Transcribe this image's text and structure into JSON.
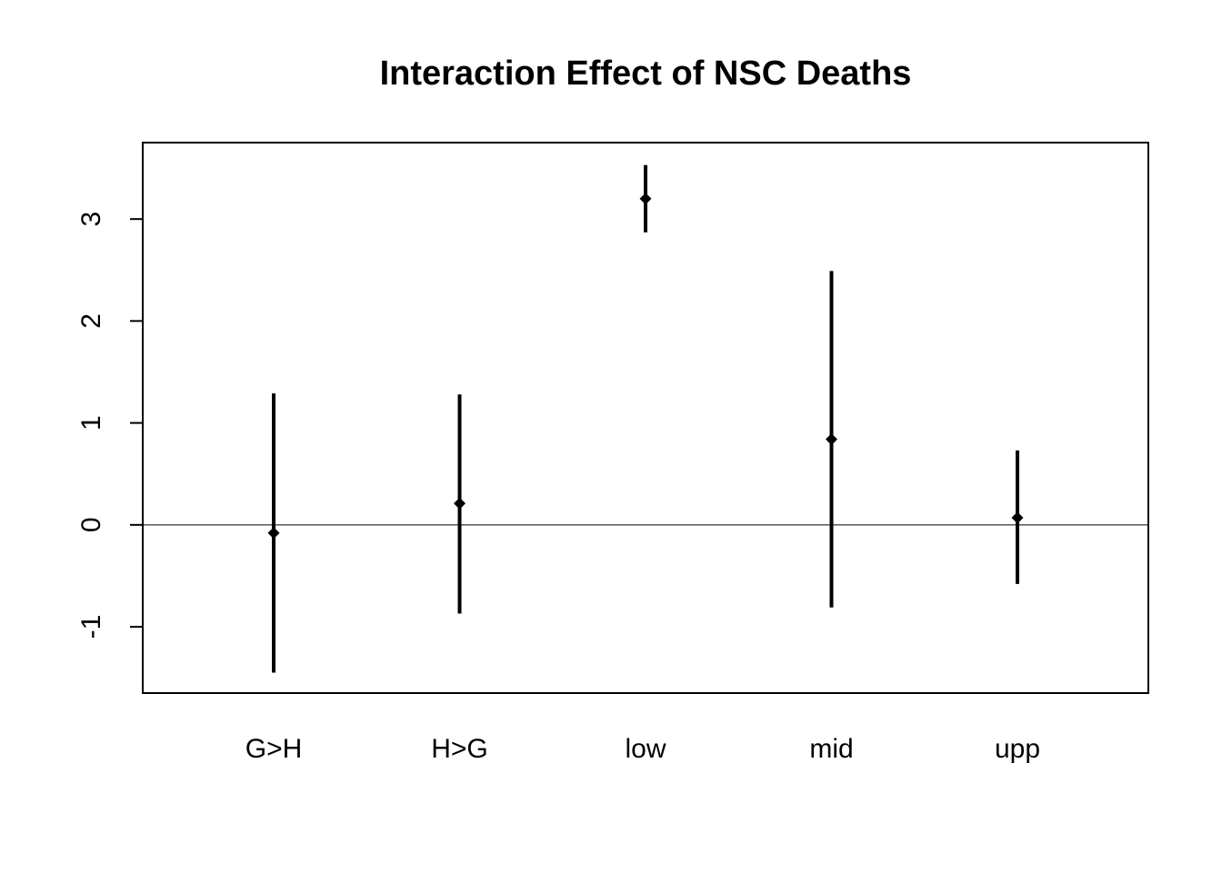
{
  "chart_data": {
    "type": "errorbar",
    "title": "Interaction Effect of NSC Deaths",
    "xlabel": "",
    "ylabel": "",
    "categories": [
      "G>H",
      "H>G",
      "low",
      "mid",
      "upp"
    ],
    "estimates": [
      -0.08,
      0.21,
      3.2,
      0.84,
      0.07
    ],
    "lower": [
      -1.45,
      -0.87,
      2.87,
      -0.81,
      -0.58
    ],
    "upper": [
      1.29,
      1.28,
      3.53,
      2.49,
      0.73
    ],
    "yticks": [
      -1,
      0,
      1,
      2,
      3
    ],
    "ylim": [
      -1.65,
      3.75
    ],
    "reference_line": 0,
    "grid": false,
    "legend": "none",
    "colors": {
      "marks": "#000000",
      "axes": "#000000",
      "background": "#ffffff"
    }
  }
}
